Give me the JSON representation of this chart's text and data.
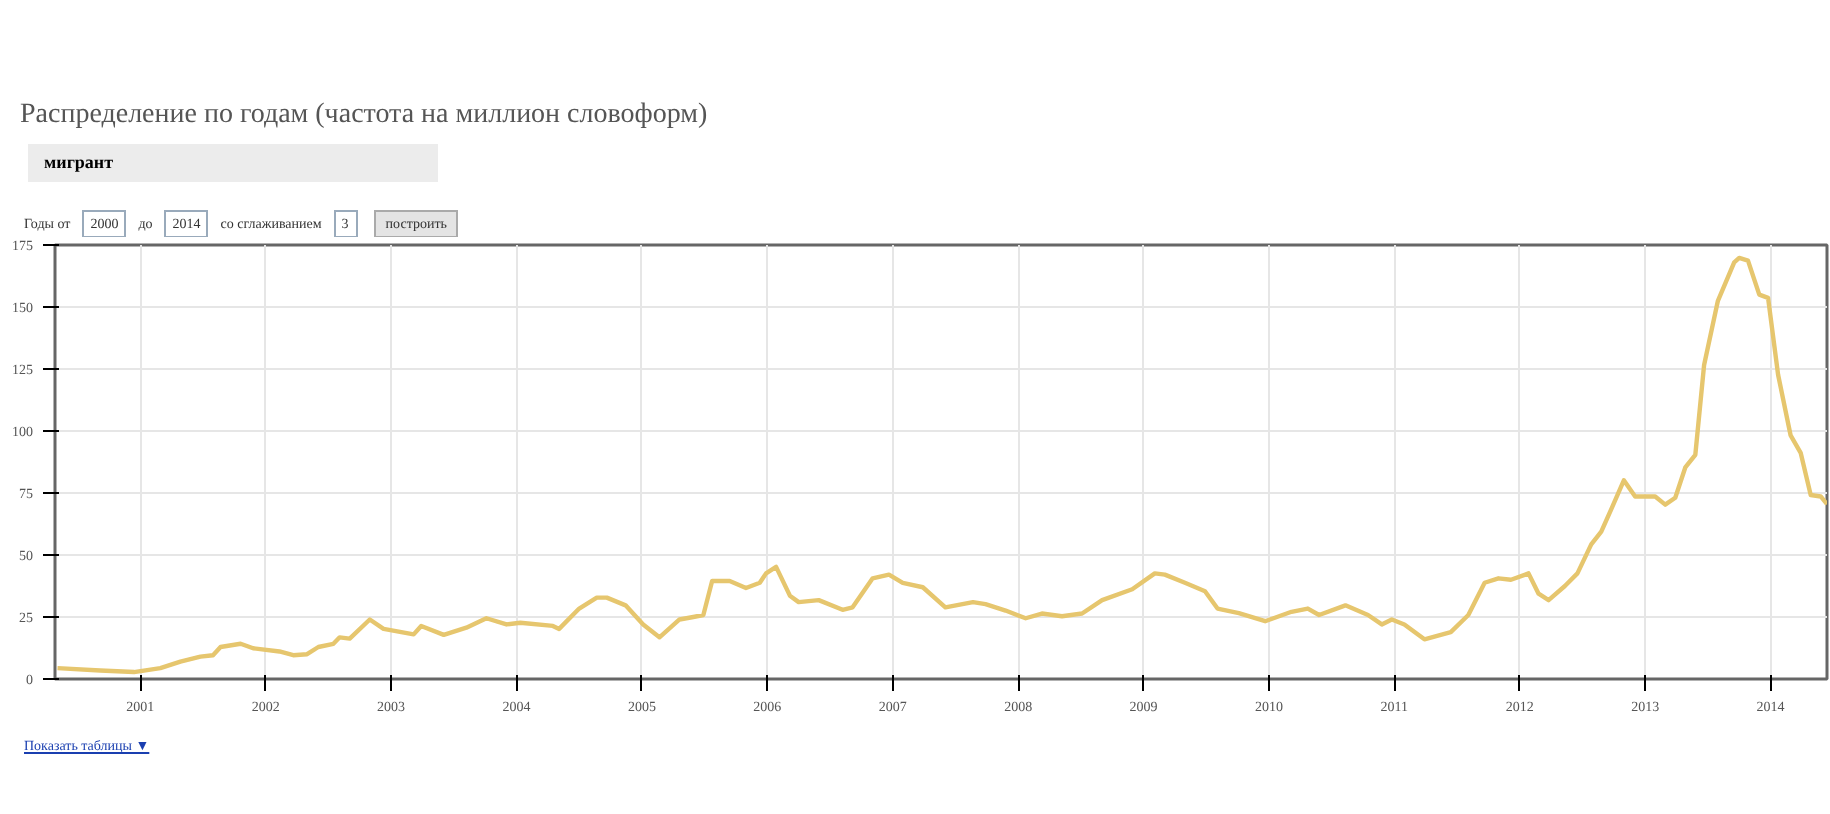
{
  "chart_data": {
    "type": "line",
    "title": "Распределение по годам (частота на миллион словоформ)",
    "annotations": [
      "мигрант",
      "Годы от",
      "2000",
      "до",
      "2014",
      "со сглаживанием",
      "3",
      "построить",
      "Показать таблицы ▼"
    ],
    "x": [
      2000.34,
      2000.68,
      2000.95,
      2001.16,
      2001.32,
      2001.48,
      2001.58,
      2001.64,
      2001.8,
      2001.9,
      2002.11,
      2002.22,
      2002.33,
      2002.42,
      2002.54,
      2002.59,
      2002.67,
      2002.83,
      2002.94,
      2003.18,
      2003.24,
      2003.42,
      2003.6,
      2003.76,
      2003.92,
      2004.03,
      2004.29,
      2004.34,
      2004.5,
      2004.64,
      2004.72,
      2004.87,
      2005.01,
      2005.14,
      2005.3,
      2005.41,
      2005.49,
      2005.56,
      2005.7,
      2005.83,
      2005.94,
      2005.99,
      2006.07,
      2006.18,
      2006.25,
      2006.41,
      2006.6,
      2006.68,
      2006.84,
      2006.97,
      2007.08,
      2007.24,
      2007.42,
      2007.64,
      2007.74,
      2007.9,
      2008.06,
      2008.19,
      2008.35,
      2008.51,
      2008.67,
      2008.91,
      2009.09,
      2009.17,
      2009.33,
      2009.49,
      2009.59,
      2009.76,
      2009.97,
      2010.18,
      2010.31,
      2010.4,
      2010.61,
      2010.79,
      2010.9,
      2010.98,
      2011.08,
      2011.24,
      2011.45,
      2011.59,
      2011.72,
      2011.83,
      2011.93,
      2012.07,
      2012.15,
      2012.23,
      2012.36,
      2012.46,
      2012.57,
      2012.65,
      2012.73,
      2012.83,
      2012.92,
      2013.08,
      2013.16,
      2013.24,
      2013.32,
      2013.4,
      2013.47,
      2013.58,
      2013.71,
      2013.75,
      2013.82,
      2013.91,
      2013.98,
      2014.06,
      2014.16,
      2014.24,
      2014.32,
      2014.4,
      2014.45
    ],
    "series": [
      {
        "color": "#e6c66e",
        "values": [
          4.4,
          3.4,
          2.8,
          4.4,
          7,
          9,
          9.6,
          12.9,
          14.2,
          12.4,
          11.1,
          9.6,
          10,
          12.9,
          14.2,
          16.8,
          16.3,
          24,
          20.2,
          18,
          21.4,
          17.8,
          20.7,
          24.5,
          22,
          22.7,
          21.4,
          20.2,
          28.4,
          32.8,
          32.8,
          29.7,
          22,
          16.8,
          24,
          25,
          25.8,
          39.5,
          39.5,
          36.7,
          38.8,
          42.6,
          45.2,
          33.6,
          31,
          31.8,
          27.9,
          28.9,
          40.6,
          42.1,
          38.8,
          37,
          28.9,
          31,
          30.2,
          27.6,
          24.5,
          26.4,
          25.3,
          26.4,
          31.8,
          36.2,
          42.6,
          42.1,
          38.8,
          35.4,
          28.4,
          26.6,
          23.3,
          27.1,
          28.4,
          25.8,
          29.7,
          25.8,
          22,
          24,
          22,
          16,
          18.9,
          25.8,
          38.8,
          40.6,
          40,
          42.6,
          34.4,
          31.8,
          37.5,
          42.6,
          54.3,
          59.4,
          68.5,
          80.1,
          73.6,
          73.6,
          70.3,
          73.1,
          85.3,
          90.4,
          126.6,
          152.5,
          168,
          169.8,
          168.7,
          155,
          153.7,
          122.7,
          98.2,
          91.2,
          74.2,
          73.6,
          70.5
        ]
      }
    ],
    "xlim": [
      2000.32,
      2014.45
    ],
    "ylim": [
      0,
      175
    ],
    "xticks": [
      2001,
      2002,
      2003,
      2004,
      2005,
      2006,
      2007,
      2008,
      2009,
      2010,
      2011,
      2012,
      2013,
      2014
    ],
    "yticks": [
      0,
      25,
      50,
      75,
      100,
      125,
      150,
      175
    ],
    "grid": true,
    "marker": "none",
    "line_style": "solid"
  }
}
